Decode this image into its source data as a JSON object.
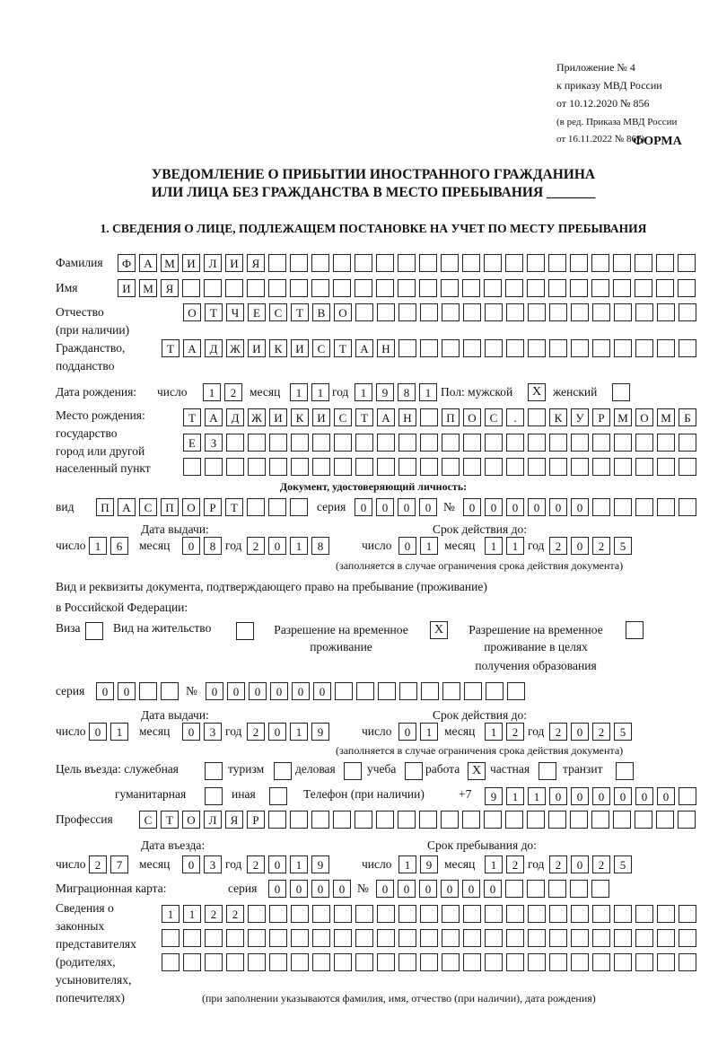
{
  "header": {
    "line1": "Приложение № 4",
    "line2": "к приказу МВД России",
    "line3": "от 10.12.2020 № 856",
    "line4": "(в ред. Приказа МВД России",
    "line5": "от 16.11.2022 № 867)",
    "forma": "ФОРМА"
  },
  "title": {
    "line1": "УВЕДОМЛЕНИЕ О ПРИБЫТИИ ИНОСТРАННОГО ГРАЖДАНИНА",
    "line2": "ИЛИ ЛИЦА БЕЗ ГРАЖДАНСТВА В МЕСТО ПРЕБЫВАНИЯ _______"
  },
  "section1": "1. СВЕДЕНИЯ О ЛИЦЕ, ПОДЛЕЖАЩЕМ ПОСТАНОВКЕ НА УЧЕТ ПО МЕСТУ ПРЕБЫВАНИЯ",
  "labels": {
    "surname": "Фамилия",
    "name": "Имя",
    "patronymic": "Отчество",
    "patronymic2": "(при наличии)",
    "citizenship": "Гражданство,",
    "citizenship2": "подданство",
    "birth_date": "Дата рождения:",
    "day": "число",
    "month": "месяц",
    "year": "год",
    "sex": "Пол: мужской",
    "female": "женский",
    "birthplace1": "Место рождения:",
    "birthplace2": "государство",
    "birthplace3": "город или другой",
    "birthplace4": "населенный пункт",
    "id_doc": "Документ, удостоверяющий личность:",
    "kind": "вид",
    "series": "серия",
    "number": "№",
    "issue_date": "Дата выдачи:",
    "valid_until": "Срок действия до:",
    "valid_note": "(заполняется в случае ограничения срока действия документа)",
    "right_doc1": "Вид и реквизиты документа, подтверждающего право на пребывание (проживание)",
    "right_doc2": "в Российской Федерации:",
    "visa": "Виза",
    "residence": "Вид на жительство",
    "trp1": "Разрешение на временное",
    "trp2": "проживание",
    "trpe1": "Разрешение на временное",
    "trpe2": "проживание в целях",
    "trpe3": "получения образования",
    "purpose": "Цель въезда: служебная",
    "tourism": "туризм",
    "business": "деловая",
    "study": "учеба",
    "work": "работа",
    "private": "частная",
    "transit": "транзит",
    "humanitarian": "гуманитарная",
    "other": "иная",
    "phone": "Телефон (при наличии)",
    "phone_prefix": "+7",
    "profession": "Профессия",
    "entry_date": "Дата въезда:",
    "stay_until": "Срок пребывания до:",
    "migration_card": "Миграционная карта:",
    "reps1": "Сведения о",
    "reps2": "законных",
    "reps3": "представителях",
    "reps4": "(родителях,",
    "reps5": "усыновителях,",
    "reps6": "попечителях)",
    "reps_note": "(при заполнении указываются фамилия, имя, отчество (при наличии), дата рождения)"
  },
  "values": {
    "surname": "ФАМИЛИЯ",
    "name": "ИМЯ",
    "patronymic": "ОТЧЕСТВО",
    "citizenship": "ТАДЖИКИСТАН",
    "birth_day": "12",
    "birth_month": "11",
    "birth_year": "1981",
    "sex_male": true,
    "sex_female": false,
    "birthplace1": "ТАДЖИКИСТАН ПОС. КУРМОМБ",
    "birthplace2": "ЕЗ",
    "birthplace3": "",
    "doc_kind": "ПАСПОРТ",
    "doc_series": "0000",
    "doc_number": "000000",
    "doc_issue_day": "16",
    "doc_issue_month": "08",
    "doc_issue_year": "2018",
    "doc_valid_day": "01",
    "doc_valid_month": "11",
    "doc_valid_year": "2025",
    "visa": false,
    "residence": false,
    "trp": true,
    "trpe": false,
    "right_series": "00",
    "right_number": "000000",
    "right_issue_day": "01",
    "right_issue_month": "03",
    "right_issue_year": "2019",
    "right_valid_day": "01",
    "right_valid_month": "12",
    "right_valid_year": "2025",
    "p_service": false,
    "p_tourism": false,
    "p_business": false,
    "p_study": false,
    "p_work": true,
    "p_private": false,
    "p_transit": false,
    "p_humanitarian": false,
    "p_other": false,
    "phone": "911000000",
    "profession": "СТОЛЯР",
    "entry_day": "27",
    "entry_month": "03",
    "entry_year": "2019",
    "stay_day": "19",
    "stay_month": "12",
    "stay_year": "2025",
    "mc_series": "0000",
    "mc_number": "000000",
    "reps1": "1122",
    "reps2": "",
    "reps3": ""
  }
}
